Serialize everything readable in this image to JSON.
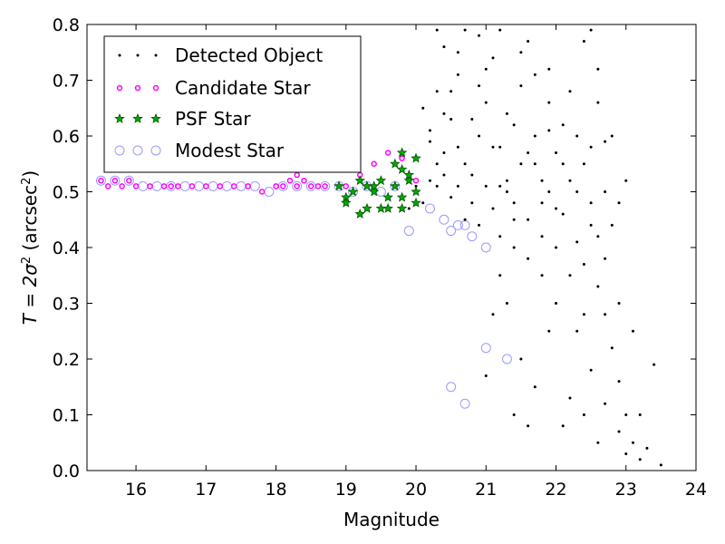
{
  "chart_data": {
    "type": "scatter",
    "xlabel": "Magnitude",
    "ylabel_parts": {
      "prefix": "T = 2σ",
      "sup1": "2",
      "mid": " (arcsec",
      "sup2": "2",
      "suffix": ")"
    },
    "xlim": [
      15.3,
      24
    ],
    "ylim": [
      0.0,
      0.8
    ],
    "x_ticks": [
      "16",
      "17",
      "18",
      "19",
      "20",
      "21",
      "22",
      "23",
      "24"
    ],
    "y_ticks": [
      "0.0",
      "0.1",
      "0.2",
      "0.3",
      "0.4",
      "0.5",
      "0.6",
      "0.7",
      "0.8"
    ],
    "grid": false,
    "legend_position": "top-left",
    "colors": {
      "detected": "#000000",
      "candidate": "#ff00ff",
      "psf_fill": "#00aa00",
      "psf_edge": "#005500",
      "modest": "#9999ff"
    },
    "series": [
      {
        "name": "Detected Object",
        "marker": "dot",
        "points": [
          [
            20.1,
            0.48
          ],
          [
            20.2,
            0.52
          ],
          [
            20.3,
            0.55
          ],
          [
            20.4,
            0.57
          ],
          [
            20.2,
            0.61
          ],
          [
            20.5,
            0.63
          ],
          [
            20.3,
            0.68
          ],
          [
            20.6,
            0.71
          ],
          [
            20.4,
            0.76
          ],
          [
            20.7,
            0.79
          ],
          [
            20.8,
            0.53
          ],
          [
            20.9,
            0.6
          ],
          [
            21.0,
            0.66
          ],
          [
            21.1,
            0.74
          ],
          [
            21.2,
            0.58
          ],
          [
            21.3,
            0.5
          ],
          [
            21.4,
            0.62
          ],
          [
            21.5,
            0.69
          ],
          [
            21.6,
            0.77
          ],
          [
            21.7,
            0.55
          ],
          [
            21.8,
            0.48
          ],
          [
            21.9,
            0.61
          ],
          [
            22.0,
            0.57
          ],
          [
            22.1,
            0.46
          ],
          [
            22.2,
            0.52
          ],
          [
            22.3,
            0.41
          ],
          [
            22.4,
            0.37
          ],
          [
            22.5,
            0.44
          ],
          [
            22.6,
            0.33
          ],
          [
            22.7,
            0.28
          ],
          [
            22.8,
            0.22
          ],
          [
            22.9,
            0.16
          ],
          [
            23.0,
            0.1
          ],
          [
            23.1,
            0.05
          ],
          [
            23.2,
            0.02
          ],
          [
            23.4,
            0.19
          ],
          [
            23.5,
            0.01
          ],
          [
            22.5,
            0.79
          ],
          [
            22.6,
            0.66
          ],
          [
            22.7,
            0.59
          ],
          [
            22.4,
            0.55
          ],
          [
            22.2,
            0.68
          ],
          [
            21.9,
            0.72
          ],
          [
            21.6,
            0.45
          ],
          [
            21.4,
            0.4
          ],
          [
            21.8,
            0.35
          ],
          [
            22.0,
            0.3
          ],
          [
            22.3,
            0.25
          ],
          [
            22.5,
            0.18
          ],
          [
            22.7,
            0.12
          ],
          [
            22.9,
            0.07
          ],
          [
            23.0,
            0.03
          ],
          [
            21.3,
            0.3
          ],
          [
            21.5,
            0.2
          ],
          [
            21.7,
            0.15
          ],
          [
            21.9,
            0.25
          ],
          [
            22.1,
            0.08
          ],
          [
            22.2,
            0.13
          ],
          [
            22.4,
            0.1
          ],
          [
            22.6,
            0.05
          ],
          [
            21.0,
            0.17
          ],
          [
            21.1,
            0.28
          ],
          [
            21.2,
            0.35
          ],
          [
            21.4,
            0.1
          ],
          [
            21.6,
            0.08
          ],
          [
            20.9,
            0.78
          ],
          [
            20.6,
            0.58
          ],
          [
            20.5,
            0.49
          ],
          [
            20.7,
            0.45
          ],
          [
            20.9,
            0.44
          ],
          [
            21.1,
            0.47
          ],
          [
            21.3,
            0.52
          ],
          [
            21.5,
            0.55
          ],
          [
            21.7,
            0.6
          ],
          [
            21.9,
            0.5
          ],
          [
            22.1,
            0.55
          ],
          [
            22.3,
            0.6
          ],
          [
            22.5,
            0.48
          ],
          [
            22.7,
            0.38
          ],
          [
            22.9,
            0.3
          ],
          [
            23.1,
            0.25
          ],
          [
            23.2,
            0.1
          ],
          [
            23.3,
            0.04
          ],
          [
            22.8,
            0.44
          ],
          [
            22.6,
            0.42
          ],
          [
            22.4,
            0.28
          ],
          [
            22.2,
            0.35
          ],
          [
            22.0,
            0.4
          ],
          [
            21.8,
            0.42
          ],
          [
            21.6,
            0.38
          ],
          [
            21.4,
            0.45
          ],
          [
            21.2,
            0.42
          ],
          [
            21.0,
            0.51
          ],
          [
            20.8,
            0.63
          ],
          [
            20.6,
            0.75
          ],
          [
            20.3,
            0.79
          ],
          [
            20.0,
            0.56
          ],
          [
            20.1,
            0.65
          ],
          [
            20.3,
            0.51
          ],
          [
            20.5,
            0.68
          ],
          [
            20.7,
            0.55
          ],
          [
            20.9,
            0.69
          ],
          [
            21.1,
            0.58
          ],
          [
            21.3,
            0.64
          ],
          [
            21.5,
            0.75
          ],
          [
            21.7,
            0.71
          ],
          [
            21.9,
            0.66
          ],
          [
            22.1,
            0.62
          ],
          [
            22.3,
            0.5
          ],
          [
            22.5,
            0.58
          ],
          [
            22.7,
            0.5
          ],
          [
            22.9,
            0.48
          ],
          [
            23.0,
            0.52
          ],
          [
            22.8,
            0.6
          ],
          [
            22.6,
            0.72
          ],
          [
            22.4,
            0.77
          ],
          [
            21.2,
            0.79
          ],
          [
            21.0,
            0.72
          ],
          [
            20.8,
            0.48
          ],
          [
            20.4,
            0.64
          ],
          [
            19.9,
            0.47
          ],
          [
            20.0,
            0.51
          ],
          [
            20.2,
            0.59
          ],
          [
            20.4,
            0.53
          ],
          [
            20.6,
            0.51
          ],
          [
            21.8,
            0.52
          ],
          [
            21.6,
            0.57
          ],
          [
            21.4,
            0.48
          ],
          [
            21.2,
            0.51
          ],
          [
            22.0,
            0.47
          ]
        ]
      },
      {
        "name": "Candidate Star",
        "marker": "small-circle",
        "points": [
          [
            15.5,
            0.52
          ],
          [
            15.6,
            0.51
          ],
          [
            15.7,
            0.52
          ],
          [
            15.8,
            0.51
          ],
          [
            15.9,
            0.52
          ],
          [
            16.0,
            0.51
          ],
          [
            16.2,
            0.51
          ],
          [
            16.4,
            0.51
          ],
          [
            16.5,
            0.51
          ],
          [
            16.6,
            0.51
          ],
          [
            16.8,
            0.51
          ],
          [
            17.0,
            0.51
          ],
          [
            17.2,
            0.51
          ],
          [
            17.4,
            0.51
          ],
          [
            17.6,
            0.51
          ],
          [
            17.8,
            0.5
          ],
          [
            18.0,
            0.51
          ],
          [
            18.1,
            0.51
          ],
          [
            18.2,
            0.52
          ],
          [
            18.3,
            0.51
          ],
          [
            18.4,
            0.52
          ],
          [
            18.5,
            0.51
          ],
          [
            18.6,
            0.51
          ],
          [
            18.7,
            0.51
          ],
          [
            18.3,
            0.53
          ],
          [
            18.4,
            0.54
          ],
          [
            19.0,
            0.51
          ],
          [
            19.2,
            0.53
          ],
          [
            19.4,
            0.55
          ],
          [
            19.6,
            0.57
          ],
          [
            19.8,
            0.56
          ],
          [
            20.0,
            0.52
          ]
        ]
      },
      {
        "name": "PSF Star",
        "marker": "star",
        "points": [
          [
            18.9,
            0.51
          ],
          [
            19.0,
            0.49
          ],
          [
            19.1,
            0.5
          ],
          [
            19.2,
            0.52
          ],
          [
            19.3,
            0.51
          ],
          [
            19.4,
            0.5
          ],
          [
            19.5,
            0.47
          ],
          [
            19.6,
            0.49
          ],
          [
            19.7,
            0.51
          ],
          [
            19.8,
            0.54
          ],
          [
            19.9,
            0.52
          ],
          [
            20.0,
            0.5
          ],
          [
            19.7,
            0.55
          ],
          [
            19.8,
            0.57
          ],
          [
            19.9,
            0.53
          ],
          [
            20.0,
            0.56
          ],
          [
            19.5,
            0.52
          ],
          [
            19.3,
            0.47
          ],
          [
            19.2,
            0.46
          ],
          [
            19.6,
            0.47
          ],
          [
            19.8,
            0.47
          ],
          [
            20.0,
            0.48
          ],
          [
            19.0,
            0.48
          ],
          [
            19.4,
            0.51
          ],
          [
            19.8,
            0.49
          ]
        ]
      },
      {
        "name": "Modest Star",
        "marker": "open-circle",
        "points": [
          [
            15.5,
            0.52
          ],
          [
            15.7,
            0.52
          ],
          [
            15.9,
            0.52
          ],
          [
            16.1,
            0.51
          ],
          [
            16.3,
            0.51
          ],
          [
            16.5,
            0.51
          ],
          [
            16.7,
            0.51
          ],
          [
            16.9,
            0.51
          ],
          [
            17.1,
            0.51
          ],
          [
            17.3,
            0.51
          ],
          [
            17.5,
            0.51
          ],
          [
            17.7,
            0.51
          ],
          [
            17.9,
            0.5
          ],
          [
            18.1,
            0.51
          ],
          [
            18.3,
            0.51
          ],
          [
            18.5,
            0.51
          ],
          [
            18.7,
            0.51
          ],
          [
            18.9,
            0.51
          ],
          [
            19.1,
            0.5
          ],
          [
            19.3,
            0.51
          ],
          [
            19.5,
            0.5
          ],
          [
            19.7,
            0.51
          ],
          [
            19.9,
            0.43
          ],
          [
            20.2,
            0.47
          ],
          [
            20.4,
            0.45
          ],
          [
            20.5,
            0.43
          ],
          [
            20.6,
            0.44
          ],
          [
            20.7,
            0.44
          ],
          [
            20.8,
            0.42
          ],
          [
            21.0,
            0.4
          ],
          [
            21.0,
            0.22
          ],
          [
            21.3,
            0.2
          ],
          [
            20.5,
            0.15
          ],
          [
            20.7,
            0.12
          ]
        ]
      }
    ]
  }
}
